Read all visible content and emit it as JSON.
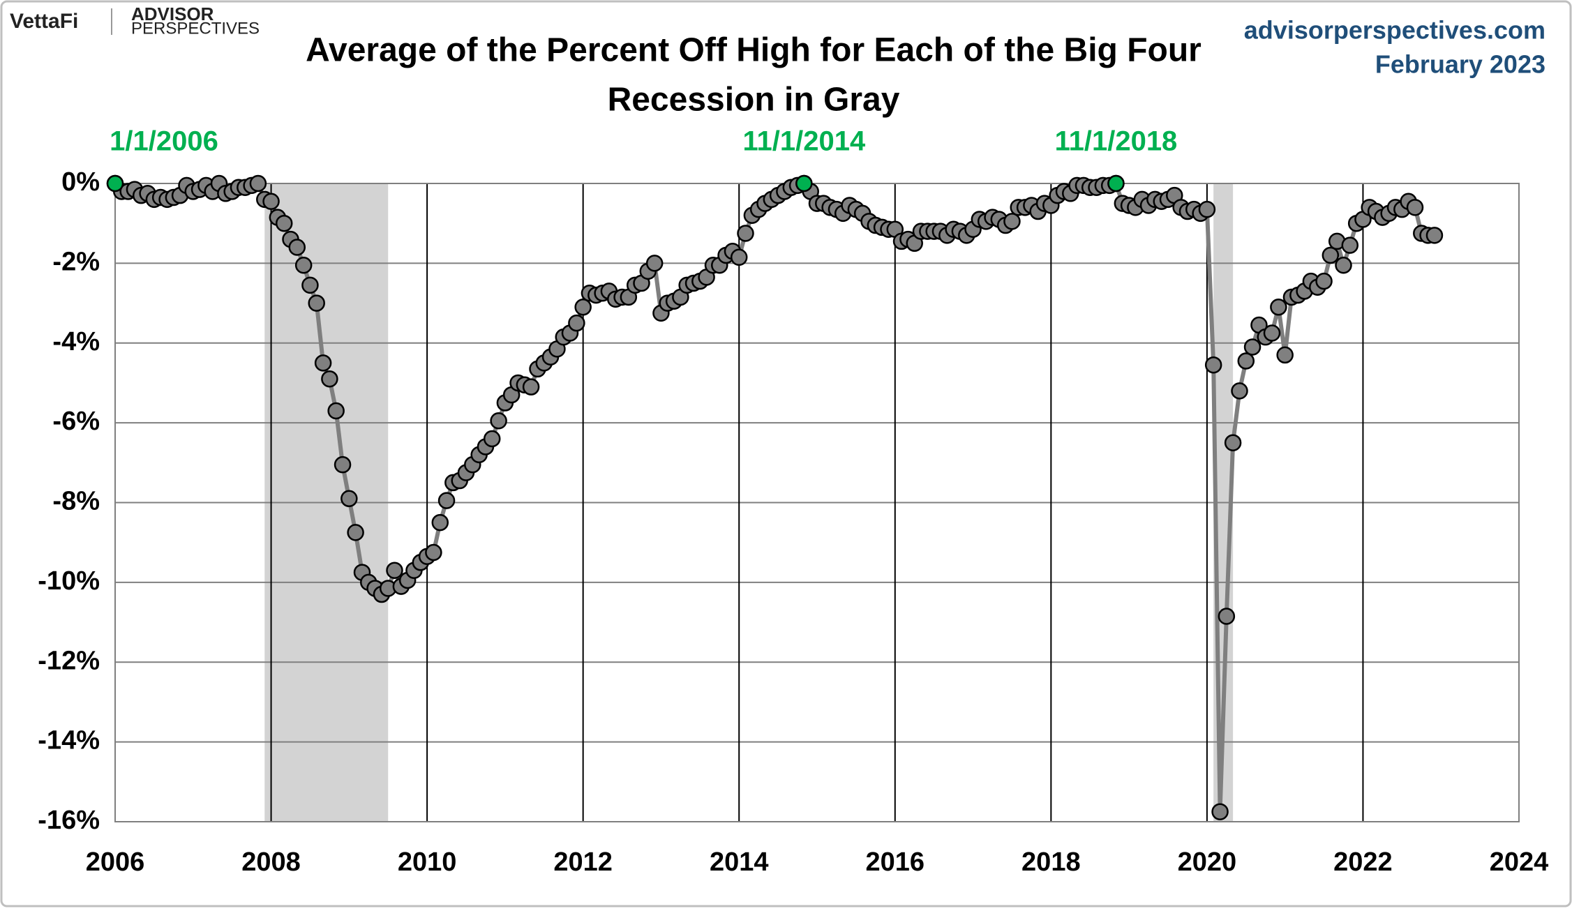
{
  "chart_data": {
    "type": "line",
    "title": "Average of the Percent Off High for Each of the Big Four",
    "subtitle": "Recession in Gray",
    "brand": {
      "logo": "VettaFi",
      "logo2": "ADVISOR",
      "logo3": "PERSPECTIVES"
    },
    "source": "advisorperspectives.com",
    "date": "February 2023",
    "color": "#808080",
    "line_color": "#7f7f7f",
    "highlight_color": "#00b050",
    "recession_color": "#d3d3d3",
    "grid": true,
    "xlim": [
      2006,
      2024
    ],
    "xticks": [
      2006,
      2008,
      2010,
      2012,
      2014,
      2016,
      2018,
      2020,
      2022,
      2024
    ],
    "ylim": [
      -16,
      0
    ],
    "yticks": [
      {
        "value": 0,
        "label": "0%"
      },
      {
        "value": -2,
        "label": "-2%"
      },
      {
        "value": -4,
        "label": "-4%"
      },
      {
        "value": -6,
        "label": "-6%"
      },
      {
        "value": -8,
        "label": "-8%"
      },
      {
        "value": -10,
        "label": "-10%"
      },
      {
        "value": -12,
        "label": "-12%"
      },
      {
        "value": -14,
        "label": "-14%"
      },
      {
        "value": -16,
        "label": "-16%"
      }
    ],
    "recessions": [
      {
        "start": 2007.917,
        "end": 2009.5
      },
      {
        "start": 2020.083,
        "end": 2020.333
      }
    ],
    "annotations": [
      {
        "text": "1/1/2006",
        "x": 2006,
        "y": 0
      },
      {
        "text": "11/1/2014",
        "x": 2014.833,
        "y": 0
      },
      {
        "text": "11/1/2018",
        "x": 2018.833,
        "y": 0
      }
    ],
    "x": [
      2006,
      2006.083,
      2006.167,
      2006.25,
      2006.333,
      2006.417,
      2006.5,
      2006.583,
      2006.667,
      2006.75,
      2006.833,
      2006.917,
      2007,
      2007.083,
      2007.167,
      2007.25,
      2007.333,
      2007.417,
      2007.5,
      2007.583,
      2007.667,
      2007.75,
      2007.833,
      2007.917,
      2008,
      2008.083,
      2008.167,
      2008.25,
      2008.333,
      2008.417,
      2008.5,
      2008.583,
      2008.667,
      2008.75,
      2008.833,
      2008.917,
      2009,
      2009.083,
      2009.167,
      2009.25,
      2009.333,
      2009.417,
      2009.5,
      2009.583,
      2009.667,
      2009.75,
      2009.833,
      2009.917,
      2010,
      2010.083,
      2010.167,
      2010.25,
      2010.333,
      2010.417,
      2010.5,
      2010.583,
      2010.667,
      2010.75,
      2010.833,
      2010.917,
      2011,
      2011.083,
      2011.167,
      2011.25,
      2011.333,
      2011.417,
      2011.5,
      2011.583,
      2011.667,
      2011.75,
      2011.833,
      2011.917,
      2012,
      2012.083,
      2012.167,
      2012.25,
      2012.333,
      2012.417,
      2012.5,
      2012.583,
      2012.667,
      2012.75,
      2012.833,
      2012.917,
      2013,
      2013.083,
      2013.167,
      2013.25,
      2013.333,
      2013.417,
      2013.5,
      2013.583,
      2013.667,
      2013.75,
      2013.833,
      2013.917,
      2014,
      2014.083,
      2014.167,
      2014.25,
      2014.333,
      2014.417,
      2014.5,
      2014.583,
      2014.667,
      2014.75,
      2014.833,
      2014.917,
      2015,
      2015.083,
      2015.167,
      2015.25,
      2015.333,
      2015.417,
      2015.5,
      2015.583,
      2015.667,
      2015.75,
      2015.833,
      2015.917,
      2016,
      2016.083,
      2016.167,
      2016.25,
      2016.333,
      2016.417,
      2016.5,
      2016.583,
      2016.667,
      2016.75,
      2016.833,
      2016.917,
      2017,
      2017.083,
      2017.167,
      2017.25,
      2017.333,
      2017.417,
      2017.5,
      2017.583,
      2017.667,
      2017.75,
      2017.833,
      2017.917,
      2018,
      2018.083,
      2018.167,
      2018.25,
      2018.333,
      2018.417,
      2018.5,
      2018.583,
      2018.667,
      2018.75,
      2018.833,
      2018.917,
      2019,
      2019.083,
      2019.167,
      2019.25,
      2019.333,
      2019.417,
      2019.5,
      2019.583,
      2019.667,
      2019.75,
      2019.833,
      2019.917,
      2020,
      2020.083,
      2020.167,
      2020.25,
      2020.333,
      2020.417,
      2020.5,
      2020.583,
      2020.667,
      2020.75,
      2020.833,
      2020.917,
      2021,
      2021.083,
      2021.167,
      2021.25,
      2021.333,
      2021.417,
      2021.5,
      2021.583,
      2021.667,
      2021.75,
      2021.833,
      2021.917,
      2022,
      2022.083,
      2022.167,
      2022.25,
      2022.333,
      2022.417,
      2022.5,
      2022.583,
      2022.667,
      2022.75,
      2022.833,
      2022.917
    ],
    "values": [
      0,
      -0.2,
      -0.2,
      -0.15,
      -0.3,
      -0.25,
      -0.4,
      -0.35,
      -0.4,
      -0.35,
      -0.3,
      -0.05,
      -0.2,
      -0.15,
      -0.05,
      -0.2,
      0,
      -0.25,
      -0.2,
      -0.1,
      -0.1,
      -0.05,
      0,
      -0.4,
      -0.45,
      -0.85,
      -1.0,
      -1.4,
      -1.6,
      -2.05,
      -2.55,
      -3.0,
      -4.5,
      -4.9,
      -5.7,
      -7.05,
      -7.9,
      -8.75,
      -9.75,
      -10.0,
      -10.15,
      -10.3,
      -10.15,
      -9.7,
      -10.1,
      -9.95,
      -9.7,
      -9.5,
      -9.35,
      -9.25,
      -8.5,
      -7.95,
      -7.5,
      -7.45,
      -7.25,
      -7.05,
      -6.8,
      -6.6,
      -6.4,
      -5.95,
      -5.5,
      -5.3,
      -5.0,
      -5.05,
      -5.1,
      -4.65,
      -4.5,
      -4.35,
      -4.15,
      -3.85,
      -3.75,
      -3.5,
      -3.1,
      -2.75,
      -2.8,
      -2.75,
      -2.7,
      -2.9,
      -2.85,
      -2.85,
      -2.55,
      -2.5,
      -2.2,
      -2.0,
      -3.25,
      -3.0,
      -2.95,
      -2.85,
      -2.55,
      -2.5,
      -2.45,
      -2.35,
      -2.05,
      -2.05,
      -1.8,
      -1.7,
      -1.85,
      -1.25,
      -0.8,
      -0.65,
      -0.5,
      -0.4,
      -0.3,
      -0.2,
      -0.1,
      -0.05,
      0,
      -0.2,
      -0.5,
      -0.5,
      -0.6,
      -0.65,
      -0.75,
      -0.55,
      -0.65,
      -0.75,
      -0.95,
      -1.05,
      -1.1,
      -1.15,
      -1.15,
      -1.45,
      -1.4,
      -1.5,
      -1.2,
      -1.2,
      -1.2,
      -1.2,
      -1.3,
      -1.15,
      -1.2,
      -1.3,
      -1.15,
      -0.9,
      -0.95,
      -0.85,
      -0.9,
      -1.05,
      -0.95,
      -0.6,
      -0.6,
      -0.55,
      -0.7,
      -0.5,
      -0.55,
      -0.3,
      -0.2,
      -0.25,
      -0.05,
      -0.05,
      -0.1,
      -0.1,
      -0.05,
      -0.05,
      0,
      -0.5,
      -0.55,
      -0.6,
      -0.4,
      -0.55,
      -0.4,
      -0.45,
      -0.4,
      -0.3,
      -0.6,
      -0.7,
      -0.65,
      -0.75,
      -0.65,
      -4.55,
      -15.75,
      -10.85,
      -6.5,
      -5.2,
      -4.45,
      -4.1,
      -3.55,
      -3.85,
      -3.75,
      -3.1,
      -4.3,
      -2.85,
      -2.8,
      -2.7,
      -2.45,
      -2.6,
      -2.45,
      -1.8,
      -1.45,
      -2.05,
      -1.55,
      -1.0,
      -0.9,
      -0.6,
      -0.7,
      -0.85,
      -0.75,
      -0.6,
      -0.65,
      -0.45,
      -0.6,
      -1.25,
      -1.3,
      -1.3
    ]
  }
}
